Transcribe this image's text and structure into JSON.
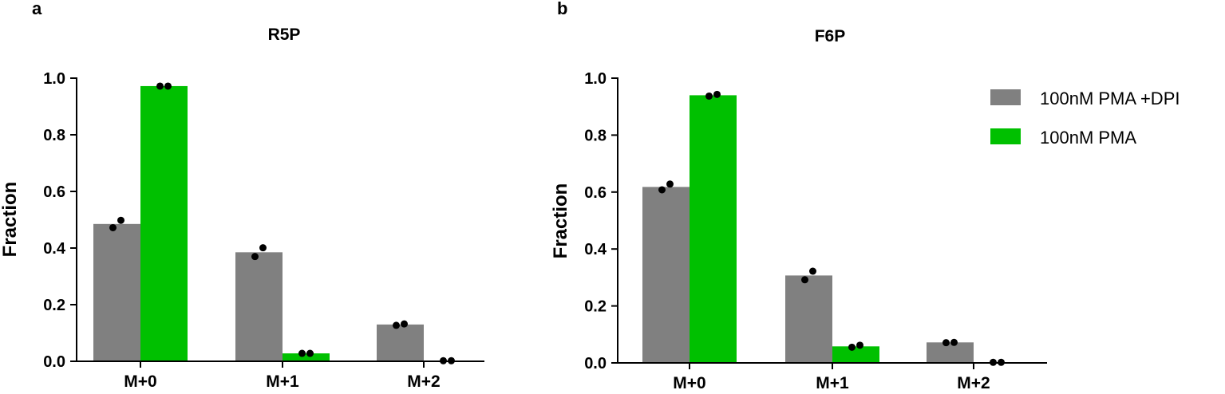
{
  "panels": [
    {
      "letter": "a"
    },
    {
      "letter": "b"
    }
  ],
  "legend": [
    {
      "label": "100nM PMA +DPI",
      "color": "#808080"
    },
    {
      "label": "100nM PMA",
      "color": "#00c000"
    }
  ],
  "chart_data": [
    {
      "type": "bar",
      "title": "R5P",
      "xlabel": "",
      "ylabel": "Fraction",
      "ylim": [
        0,
        1.0
      ],
      "yticks": [
        "0.0",
        "0.2",
        "0.4",
        "0.6",
        "0.8",
        "1.0"
      ],
      "categories": [
        "M+0",
        "M+1",
        "M+2"
      ],
      "series": [
        {
          "name": "100nM PMA +DPI",
          "color": "#808080",
          "values": [
            0.485,
            0.385,
            0.13
          ],
          "points": [
            [
              0.472,
              0.498
            ],
            [
              0.37,
              0.401
            ],
            [
              0.127,
              0.132
            ]
          ]
        },
        {
          "name": "100nM PMA",
          "color": "#00c000",
          "values": [
            0.972,
            0.028,
            0.002
          ],
          "points": [
            [
              0.972,
              0.972
            ],
            [
              0.028,
              0.028
            ],
            [
              0.002,
              0.002
            ]
          ]
        }
      ]
    },
    {
      "type": "bar",
      "title": "F6P",
      "xlabel": "",
      "ylabel": "Fraction",
      "ylim": [
        0,
        1.0
      ],
      "yticks": [
        "0.0",
        "0.2",
        "0.4",
        "0.6",
        "0.8",
        "1.0"
      ],
      "categories": [
        "M+0",
        "M+1",
        "M+2"
      ],
      "series": [
        {
          "name": "100nM PMA +DPI",
          "color": "#808080",
          "values": [
            0.618,
            0.307,
            0.072
          ],
          "points": [
            [
              0.608,
              0.628
            ],
            [
              0.292,
              0.322
            ],
            [
              0.071,
              0.072
            ]
          ]
        },
        {
          "name": "100nM PMA",
          "color": "#00c000",
          "values": [
            0.94,
            0.058,
            0.002
          ],
          "points": [
            [
              0.937,
              0.943
            ],
            [
              0.055,
              0.062
            ],
            [
              0.002,
              0.002
            ]
          ]
        }
      ]
    }
  ]
}
